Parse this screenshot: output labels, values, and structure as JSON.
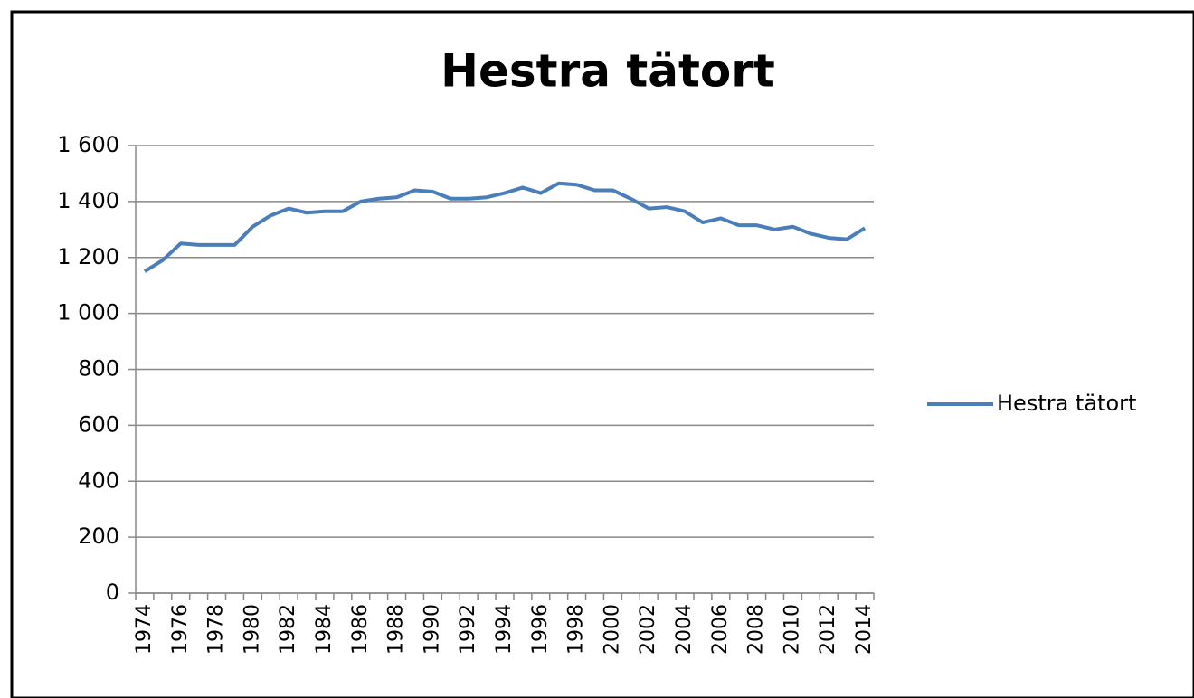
{
  "chart_data": {
    "type": "line",
    "title": "Hestra tätort",
    "categories": [
      "1974",
      null,
      "1976",
      null,
      "1978",
      null,
      "1980",
      null,
      "1982",
      null,
      "1984",
      null,
      "1986",
      null,
      "1988",
      null,
      "1990",
      null,
      "1992",
      null,
      "1994",
      null,
      "1996",
      null,
      "1998",
      null,
      "2000",
      null,
      "2002",
      null,
      "2004",
      null,
      "2006",
      null,
      "2008",
      null,
      "2010",
      null,
      "2012",
      null,
      "2014"
    ],
    "series": [
      {
        "name": "Hestra tätort",
        "color": "#4a7ebb",
        "values": [
          1150,
          1190,
          1250,
          1245,
          1245,
          1245,
          1310,
          1350,
          1375,
          1360,
          1365,
          1365,
          1400,
          1410,
          1415,
          1440,
          1435,
          1410,
          1410,
          1415,
          1430,
          1450,
          1430,
          1465,
          1460,
          1440,
          1440,
          1410,
          1375,
          1380,
          1365,
          1325,
          1340,
          1315,
          1315,
          1300,
          1310,
          1285,
          1270,
          1265,
          1305
        ]
      }
    ],
    "ylim": [
      0,
      1600
    ],
    "yticks": [
      0,
      200,
      400,
      600,
      800,
      {
        "value": 1000,
        "label": "1 000"
      },
      {
        "value": 1200,
        "label": "1 200"
      },
      {
        "value": 1400,
        "label": "1 400"
      },
      {
        "value": 1600,
        "label": "1 600"
      }
    ],
    "grid": true,
    "legend": "right"
  }
}
